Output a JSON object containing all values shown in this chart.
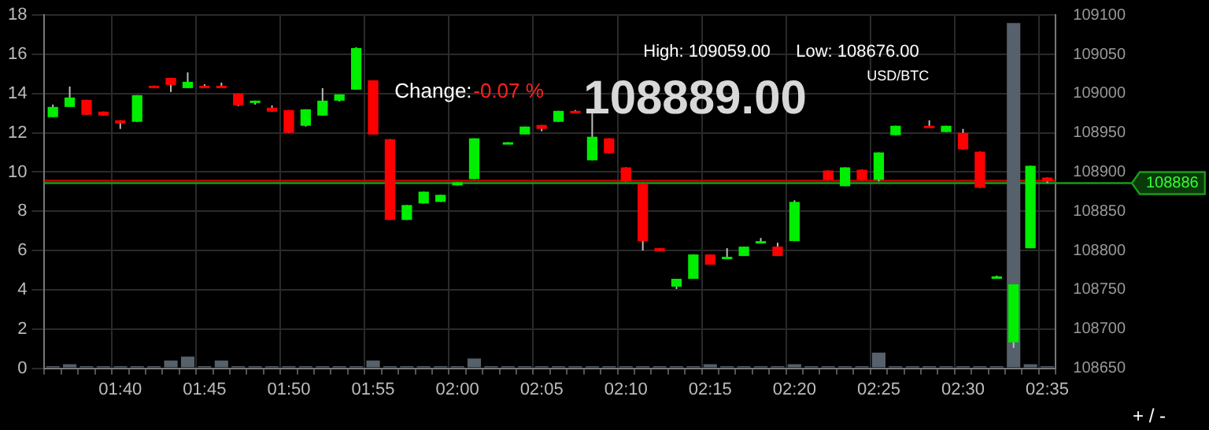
{
  "chart_data": {
    "type": "candlestick",
    "categories": [
      null,
      null,
      null,
      null,
      "01:40",
      null,
      null,
      null,
      null,
      "01:45",
      null,
      null,
      null,
      null,
      "01:50",
      null,
      null,
      null,
      null,
      "01:55",
      null,
      null,
      null,
      null,
      "02:00",
      null,
      null,
      null,
      null,
      "02:05",
      null,
      null,
      null,
      null,
      "02:10",
      null,
      null,
      null,
      null,
      "02:15",
      null,
      null,
      null,
      null,
      "02:20",
      null,
      null,
      null,
      null,
      "02:25",
      null,
      null,
      null,
      null,
      "02:30",
      null,
      null,
      null,
      null,
      "02:35"
    ],
    "series": [
      {
        "type": "bar",
        "axis": "y",
        "color": "#56616c",
        "values": [
          0.1,
          0.2,
          0.1,
          0.1,
          0.1,
          0.1,
          0.1,
          0.4,
          0.6,
          0.1,
          0.4,
          0.1,
          0.1,
          0.1,
          0.1,
          0.1,
          0.1,
          0.1,
          0.1,
          0.4,
          0.1,
          0.1,
          0.1,
          0.1,
          0.1,
          0.5,
          0.1,
          0.1,
          0.1,
          0.1,
          0.1,
          0.1,
          0.1,
          0.1,
          0.1,
          0.1,
          0.1,
          0.1,
          0.1,
          0.2,
          0.1,
          0.1,
          0.1,
          0.1,
          0.2,
          0.1,
          0.1,
          0.1,
          0.1,
          0.8,
          0.1,
          0.1,
          0.1,
          0.1,
          0.1,
          0.1,
          0.1,
          17.6,
          0.2,
          0.1
        ]
      },
      {
        "axis": "y2",
        "ohlc": [
          [
            108970,
            108986,
            108970,
            108983
          ],
          [
            108983,
            109009,
            108983,
            108995
          ],
          [
            108992,
            108992,
            108973,
            108973
          ],
          [
            108977,
            108977,
            108972,
            108972
          ],
          [
            108966,
            108966,
            108955,
            108962
          ],
          [
            108964,
            108998,
            108964,
            108998
          ],
          [
            109010,
            109010,
            109009,
            109009
          ],
          [
            109020,
            109020,
            109002,
            109011
          ],
          [
            109007,
            109027,
            109007,
            109015
          ],
          [
            109010,
            109012,
            109009,
            109009
          ],
          [
            109010,
            109014,
            109009,
            109009
          ],
          [
            109000,
            109000,
            108984,
            108985
          ],
          [
            108989,
            108991,
            108986,
            108991
          ],
          [
            108982,
            108985,
            108977,
            108977
          ],
          [
            108979,
            108979,
            108950,
            108950
          ],
          [
            108959,
            108980,
            108958,
            108980
          ],
          [
            108972,
            109007,
            108972,
            108991
          ],
          [
            108991,
            108999,
            108990,
            108999
          ],
          [
            109005,
            109059,
            109005,
            109058
          ],
          [
            109017,
            109017,
            108948,
            108948
          ],
          [
            108942,
            108942,
            108839,
            108839
          ],
          [
            108839,
            108858,
            108839,
            108858
          ],
          [
            108860,
            108875,
            108860,
            108875
          ],
          [
            108862,
            108871,
            108862,
            108871
          ],
          [
            108883,
            108887,
            108883,
            108887
          ],
          [
            108891,
            108943,
            108891,
            108943
          ],
          null,
          [
            108937,
            108938,
            108937,
            108938
          ],
          [
            108948,
            108958,
            108948,
            108958
          ],
          [
            108960,
            108960,
            108952,
            108955
          ],
          [
            108964,
            108978,
            108964,
            108978
          ],
          [
            108978,
            108979,
            108977,
            108977
          ],
          [
            108915,
            108976,
            108915,
            108945
          ],
          [
            108943,
            108943,
            108924,
            108924
          ],
          [
            108906,
            108906,
            108888,
            108888
          ],
          [
            108885,
            108885,
            108800,
            108812
          ],
          [
            108803,
            108803,
            108799,
            108799
          ],
          [
            108754,
            108764,
            108751,
            108764
          ],
          [
            108764,
            108795,
            108764,
            108795
          ],
          [
            108795,
            108795,
            108782,
            108782
          ],
          [
            108791,
            108803,
            108791,
            108792
          ],
          [
            108793,
            108805,
            108793,
            108805
          ],
          [
            108812,
            108816,
            108811,
            108812
          ],
          [
            108805,
            108810,
            108793,
            108793
          ],
          [
            108812,
            108864,
            108812,
            108862
          ],
          null,
          [
            108902,
            108902,
            108890,
            108890
          ],
          [
            108882,
            108906,
            108882,
            108906
          ],
          [
            108903,
            108903,
            108890,
            108890
          ],
          [
            108890,
            108925,
            108888,
            108925
          ],
          [
            108947,
            108959,
            108947,
            108959
          ],
          null,
          [
            108959,
            108966,
            108958,
            108958
          ],
          [
            108951,
            108959,
            108951,
            108959
          ],
          [
            108950,
            108955,
            108929,
            108929
          ],
          [
            108926,
            108926,
            108880,
            108880
          ],
          [
            108767,
            108768,
            108766,
            108767
          ],
          [
            108683,
            108757,
            108676,
            108757
          ],
          [
            108803,
            108908,
            108803,
            108908
          ],
          [
            108893,
            108893,
            108886,
            108888
          ]
        ],
        "colors": [
          "#00ee00",
          "#00ee00",
          "#ff0000",
          "#ff0000",
          "#ff0000",
          "#00ee00",
          "#ff0000",
          "#ff0000",
          "#00ee00",
          "#ff0000",
          "#ff0000",
          "#ff0000",
          "#00ee00",
          "#ff0000",
          "#ff0000",
          "#00ee00",
          "#00ee00",
          "#00ee00",
          "#00ee00",
          "#ff0000",
          "#ff0000",
          "#00ee00",
          "#00ee00",
          "#00ee00",
          "#00ee00",
          "#00ee00",
          null,
          "#00ee00",
          "#00ee00",
          "#ff0000",
          "#00ee00",
          "#ff0000",
          "#00ee00",
          "#ff0000",
          "#ff0000",
          "#ff0000",
          "#ff0000",
          "#00ee00",
          "#00ee00",
          "#ff0000",
          "#00ee00",
          "#00ee00",
          "#00ee00",
          "#ff0000",
          "#00ee00",
          null,
          "#ff0000",
          "#00ee00",
          "#ff0000",
          "#00ee00",
          "#00ee00",
          null,
          "#ff0000",
          "#00ee00",
          "#ff0000",
          "#ff0000",
          "#00ee00",
          "#00ee00",
          "#00ee00",
          "#ff0000"
        ]
      }
    ],
    "ylim": [
      0,
      18
    ],
    "yticks": [
      0,
      2,
      4,
      6,
      8,
      10,
      12,
      14,
      16,
      18
    ],
    "y2lim": [
      108650,
      109100
    ],
    "y2ticks": [
      108650,
      108700,
      108750,
      108800,
      108850,
      108900,
      108950,
      109000,
      109050,
      109100
    ],
    "ref_lines": [
      {
        "axis": "y2",
        "value": 108889,
        "color": "#cc0000"
      },
      {
        "axis": "y2",
        "value": 108886,
        "label": "108886",
        "color": "#1a9a1a"
      }
    ],
    "annotations": [
      "Change:",
      "-0.07 %",
      "High: 109059.00",
      "Low: 108676.00",
      "108889.00",
      "USD/BTC",
      "+ / -"
    ],
    "grid": true,
    "legend": false
  }
}
